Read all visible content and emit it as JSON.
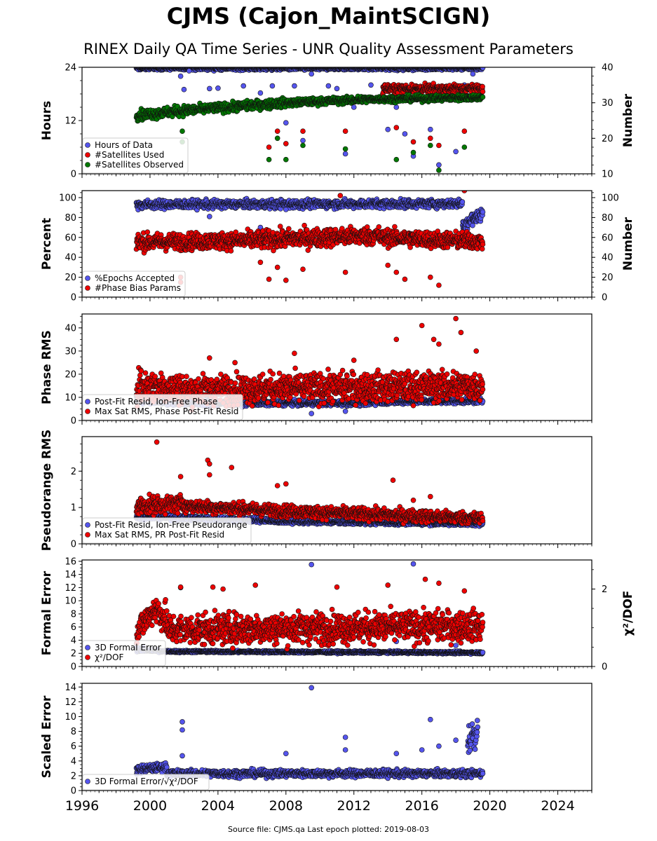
{
  "title": "CJMS (Cajon_MaintSCIGN)",
  "subtitle": "RINEX Daily QA Time Series - UNR Quality Assessment Parameters",
  "footer": "Source file: CJMS.qa Last epoch plotted: 2019-08-03",
  "colors": {
    "blue": "#5555ee",
    "red": "#ee0000",
    "green": "#007700",
    "edge": "#111111"
  },
  "x_axis": {
    "range": [
      1996,
      2026
    ],
    "ticks": [
      "1996",
      "2000",
      "2004",
      "2008",
      "2012",
      "2016",
      "2020",
      "2024"
    ]
  },
  "chart_data": [
    {
      "type": "scatter",
      "ylabel": "Hours",
      "ylim": [
        0,
        24
      ],
      "yticks": [
        "0",
        "12",
        "24"
      ],
      "y2label": "Number",
      "y2lim": [
        10,
        40
      ],
      "y2ticks": [
        "10",
        "20",
        "30",
        "40"
      ],
      "legend": "lower-left",
      "series": [
        {
          "name": "Hours of Data",
          "color": "blue",
          "axis": "left",
          "pattern": [
            [
              1999.2,
              2019.6,
              23.8,
              23.8,
              0.3
            ]
          ],
          "outliers": [
            [
              2001.8,
              22.0
            ],
            [
              2002.0,
              19.0
            ],
            [
              2002.3,
              23.2
            ],
            [
              2003.5,
              19.2
            ],
            [
              2004.0,
              19.3
            ],
            [
              2005.5,
              19.8
            ],
            [
              2006.5,
              18.2
            ],
            [
              2007.2,
              19.8
            ],
            [
              2007.6,
              16.5
            ],
            [
              2008.0,
              11.5
            ],
            [
              2008.5,
              19.8
            ],
            [
              2009.0,
              7.5
            ],
            [
              2009.5,
              22.5
            ],
            [
              2010.5,
              19.8
            ],
            [
              2011.0,
              19.2
            ],
            [
              2011.5,
              4.5
            ],
            [
              2012.0,
              15.0
            ],
            [
              2013.0,
              20.0
            ],
            [
              2014.0,
              10.0
            ],
            [
              2014.5,
              15.0
            ],
            [
              2015.0,
              9.0
            ],
            [
              2015.5,
              4.0
            ],
            [
              2016.5,
              10.0
            ],
            [
              2017.0,
              2.0
            ],
            [
              2018.0,
              5.0
            ],
            [
              2018.5,
              20.0
            ],
            [
              2019.0,
              22.5
            ]
          ]
        },
        {
          "name": "#Satellites Used",
          "color": "red",
          "axis": "right",
          "pattern": [
            [
              2013.7,
              2019.6,
              34.0,
              34.0,
              0.8
            ]
          ],
          "outliers": [
            [
              2007.0,
              17.5
            ],
            [
              2007.5,
              22.0
            ],
            [
              2008.0,
              18.5
            ],
            [
              2009.0,
              22.0
            ],
            [
              2011.5,
              22.0
            ],
            [
              2014.5,
              23.0
            ],
            [
              2015.5,
              19.0
            ],
            [
              2016.5,
              20.0
            ],
            [
              2017.0,
              18.0
            ],
            [
              2018.5,
              22.0
            ]
          ]
        },
        {
          "name": "#Satellites Observed",
          "color": "green",
          "axis": "right",
          "pattern": [
            [
              1999.2,
              2002.5,
              26.5,
              28.0,
              1.0
            ],
            [
              2002.5,
              2008.0,
              28.0,
              30.0,
              0.9
            ],
            [
              2008.0,
              2013.0,
              30.0,
              31.0,
              0.7
            ],
            [
              2013.0,
              2019.6,
              31.0,
              31.5,
              0.6
            ]
          ],
          "outliers": [
            [
              2001.9,
              19.0
            ],
            [
              2001.9,
              22.0
            ],
            [
              2007.0,
              14.0
            ],
            [
              2007.5,
              20.0
            ],
            [
              2008.0,
              14.0
            ],
            [
              2009.0,
              18.0
            ],
            [
              2011.5,
              17.0
            ],
            [
              2014.5,
              14.0
            ],
            [
              2015.5,
              16.0
            ],
            [
              2016.5,
              18.0
            ],
            [
              2017.0,
              11.0
            ],
            [
              2018.5,
              17.5
            ]
          ]
        }
      ]
    },
    {
      "type": "scatter",
      "ylabel": "Percent",
      "ylim": [
        0,
        107
      ],
      "yticks": [
        "0",
        "20",
        "40",
        "60",
        "80",
        "100"
      ],
      "y2label": "Number",
      "y2lim": [
        0,
        107
      ],
      "y2ticks": [
        "0",
        "20",
        "40",
        "60",
        "80",
        "100"
      ],
      "legend": "lower-left",
      "series": [
        {
          "name": "%Epochs Accepted",
          "color": "blue",
          "axis": "left",
          "pattern": [
            [
              1999.2,
              2018.4,
              93.0,
              94.0,
              3.0
            ],
            [
              2018.4,
              2019.6,
              72.0,
              85.0,
              6.0
            ]
          ],
          "outliers": [
            [
              2003.5,
              81.0
            ],
            [
              2006.5,
              70.0
            ],
            [
              2008.0,
              88.0
            ]
          ]
        },
        {
          "name": "#Phase Bias Params",
          "color": "red",
          "axis": "right",
          "pattern": [
            [
              1999.2,
              2005.5,
              55.0,
              57.0,
              6.0
            ],
            [
              2005.5,
              2013.5,
              57.0,
              62.0,
              6.5
            ],
            [
              2013.5,
              2019.6,
              60.0,
              56.0,
              6.0
            ]
          ],
          "outliers": [
            [
              2001.8,
              15.0
            ],
            [
              2001.8,
              20.0
            ],
            [
              2006.5,
              35.0
            ],
            [
              2007.0,
              18.0
            ],
            [
              2007.5,
              30.0
            ],
            [
              2008.0,
              17.0
            ],
            [
              2009.0,
              28.0
            ],
            [
              2011.5,
              25.0
            ],
            [
              2011.2,
              102.0
            ],
            [
              2014.0,
              32.0
            ],
            [
              2014.5,
              25.0
            ],
            [
              2015.0,
              18.0
            ],
            [
              2016.5,
              20.0
            ],
            [
              2017.0,
              12.0
            ],
            [
              2018.5,
              107.0
            ]
          ]
        }
      ]
    },
    {
      "type": "scatter",
      "ylabel": "Phase RMS",
      "ylim": [
        0,
        46
      ],
      "yticks": [
        "0",
        "10",
        "20",
        "30",
        "40"
      ],
      "legend": "lower-left",
      "series": [
        {
          "name": "Post-Fit Resid, Ion-Free Phase",
          "color": "blue",
          "axis": "left",
          "pattern": [
            [
              1999.2,
              2004.0,
              8.5,
              7.5,
              1.0
            ],
            [
              2004.0,
              2013.0,
              7.5,
              7.5,
              0.8
            ],
            [
              2013.0,
              2019.6,
              8.0,
              8.5,
              0.8
            ]
          ],
          "outliers": [
            [
              2009.5,
              3.0
            ],
            [
              2011.5,
              4.0
            ]
          ]
        },
        {
          "name": "Max Sat RMS, Phase Post-Fit Resid",
          "color": "red",
          "axis": "left",
          "pattern": [
            [
              1999.2,
              2002.0,
              15.0,
              14.0,
              5.0
            ],
            [
              2002.0,
              2008.0,
              13.0,
              14.0,
              4.5
            ],
            [
              2008.0,
              2019.6,
              14.0,
              15.0,
              4.5
            ]
          ],
          "outliers": [
            [
              2003.5,
              27.0
            ],
            [
              2005.0,
              25.0
            ],
            [
              2008.5,
              29.0
            ],
            [
              2012.0,
              26.0
            ],
            [
              2014.5,
              35.0
            ],
            [
              2016.0,
              41.0
            ],
            [
              2016.7,
              35.0
            ],
            [
              2017.0,
              33.0
            ],
            [
              2018.0,
              44.0
            ],
            [
              2018.3,
              38.0
            ],
            [
              2019.2,
              30.0
            ]
          ]
        }
      ]
    },
    {
      "type": "scatter",
      "ylabel": "Pseudorange RMS",
      "ylim": [
        0,
        2.95
      ],
      "yticks": [
        "0",
        "1",
        "2"
      ],
      "legend": "lower-left",
      "series": [
        {
          "name": "Post-Fit Resid, Ion-Free Pseudorange",
          "color": "blue",
          "axis": "left",
          "pattern": [
            [
              1999.2,
              2007.0,
              0.75,
              0.65,
              0.05
            ],
            [
              2007.0,
              2019.6,
              0.62,
              0.55,
              0.04
            ]
          ],
          "outliers": []
        },
        {
          "name": "Max Sat RMS, PR Post-Fit Resid",
          "color": "red",
          "axis": "left",
          "pattern": [
            [
              1999.2,
              2002.0,
              1.05,
              1.1,
              0.18
            ],
            [
              2002.0,
              2008.0,
              1.05,
              0.9,
              0.12
            ],
            [
              2008.0,
              2019.6,
              0.9,
              0.7,
              0.12
            ]
          ],
          "outliers": [
            [
              2000.4,
              2.8
            ],
            [
              2001.8,
              1.85
            ],
            [
              2003.4,
              2.3
            ],
            [
              2003.5,
              2.2
            ],
            [
              2003.5,
              1.9
            ],
            [
              2004.8,
              2.1
            ],
            [
              2007.5,
              1.6
            ],
            [
              2008.0,
              1.65
            ],
            [
              2014.3,
              1.75
            ],
            [
              2015.5,
              1.2
            ],
            [
              2016.5,
              1.3
            ]
          ]
        }
      ]
    },
    {
      "type": "scatter",
      "ylabel": "Formal Error",
      "ylim": [
        0,
        16.2
      ],
      "yticks": [
        "0",
        "2",
        "4",
        "6",
        "8",
        "10",
        "12",
        "14",
        "16"
      ],
      "y2label": "χ²/DOF",
      "y2lim": [
        0,
        2.75
      ],
      "y2ticks": [
        "0",
        "2"
      ],
      "legend": "lower-left",
      "series": [
        {
          "name": "3D Formal Error",
          "color": "blue",
          "axis": "left",
          "pattern": [
            [
              1999.2,
              2000.5,
              2.6,
              2.4,
              0.2
            ],
            [
              2000.5,
              2019.6,
              2.3,
              2.1,
              0.12
            ]
          ],
          "outliers": [
            [
              2009.5,
              15.5
            ],
            [
              2015.5,
              15.6
            ],
            [
              2001.8,
              12.0
            ],
            [
              2008.5,
              5.0
            ],
            [
              2014.5,
              3.8
            ],
            [
              2018.0,
              3.2
            ]
          ]
        },
        {
          "name": "χ²/DOF",
          "color": "red",
          "axis": "right",
          "pattern": [
            [
              1999.2,
              2000.3,
              0.9,
              1.5,
              0.25
            ],
            [
              2000.3,
              2001.0,
              1.5,
              1.2,
              0.3
            ],
            [
              2001.0,
              2019.6,
              0.95,
              1.05,
              0.28
            ]
          ],
          "outliers": [
            [
              2001.8,
              2.05
            ],
            [
              2003.7,
              2.05
            ],
            [
              2004.3,
              2.0
            ],
            [
              2006.2,
              2.1
            ],
            [
              2011.0,
              2.05
            ],
            [
              2014.0,
              2.1
            ],
            [
              2016.2,
              2.25
            ],
            [
              2017.0,
              2.15
            ],
            [
              2018.5,
              1.95
            ]
          ]
        }
      ]
    },
    {
      "type": "scatter",
      "ylabel": "Scaled Error",
      "ylim": [
        0,
        14.5
      ],
      "yticks": [
        "0",
        "2",
        "4",
        "6",
        "8",
        "10",
        "12",
        "14"
      ],
      "legend": "lower-left",
      "series": [
        {
          "name": "3D Formal Error/√χ²/DOF",
          "color": "blue",
          "axis": "left",
          "pattern": [
            [
              1999.2,
              2001.0,
              2.8,
              3.2,
              0.4
            ],
            [
              2001.0,
              2019.6,
              2.3,
              2.3,
              0.35
            ],
            [
              2018.7,
              2019.3,
              7.0,
              8.0,
              1.5
            ]
          ],
          "outliers": [
            [
              2009.5,
              13.9
            ],
            [
              2001.9,
              9.3
            ],
            [
              2001.9,
              8.2
            ],
            [
              2001.9,
              4.7
            ],
            [
              2011.5,
              7.2
            ],
            [
              2011.5,
              5.5
            ],
            [
              2016.5,
              9.6
            ],
            [
              2016.0,
              5.5
            ],
            [
              2017.0,
              6.0
            ],
            [
              2018.0,
              6.8
            ],
            [
              2008.0,
              5.0
            ],
            [
              2014.5,
              5.0
            ]
          ]
        }
      ]
    }
  ]
}
